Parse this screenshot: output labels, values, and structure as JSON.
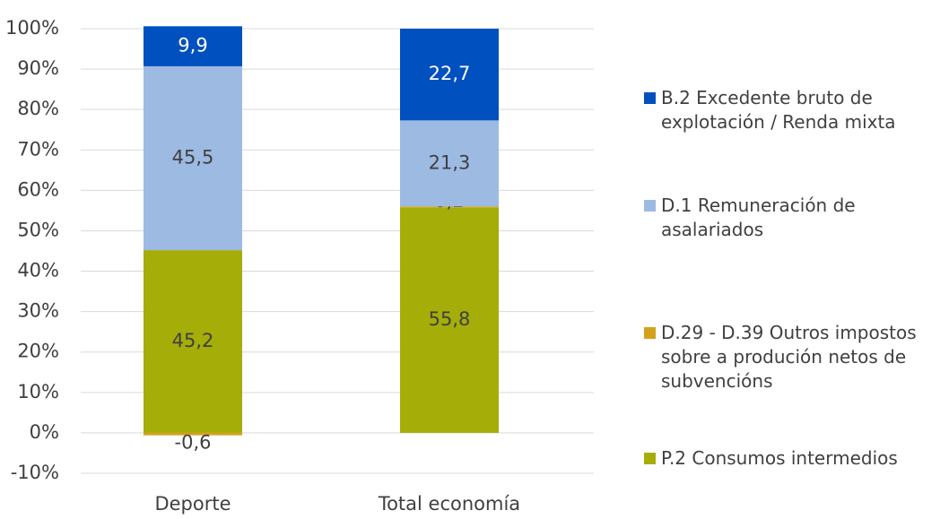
{
  "chart_data": {
    "type": "stacked_bar",
    "categories": [
      "Deporte",
      "Total economía"
    ],
    "series": [
      {
        "name": "P.2 Consumos intermedios",
        "color": "#a5ad08",
        "values": [
          45.2,
          55.8
        ],
        "value_labels": [
          "45,2",
          "55,8"
        ]
      },
      {
        "name": "D.29 - D.39 Outros impostos sobre a produción netos de subvencións",
        "color": "#d4a21a",
        "values": [
          -0.6,
          0.2
        ],
        "value_labels": [
          "-0,6",
          "0,2"
        ]
      },
      {
        "name": "D.1 Remuneración de asalariados",
        "color": "#9dbae3",
        "values": [
          45.5,
          21.3
        ],
        "value_labels": [
          "45,5",
          "21,3"
        ]
      },
      {
        "name": "B.2 Excedente bruto de explotación / Renda mixta",
        "color": "#0050bf",
        "values": [
          9.9,
          22.7
        ],
        "value_labels": [
          "9,9",
          "22,7"
        ]
      }
    ],
    "ylim": [
      -10,
      100
    ],
    "yticks": [
      {
        "value": -10,
        "label": "-10%"
      },
      {
        "value": 0,
        "label": "0%"
      },
      {
        "value": 10,
        "label": "10%"
      },
      {
        "value": 20,
        "label": "20%"
      },
      {
        "value": 30,
        "label": "30%"
      },
      {
        "value": 40,
        "label": "40%"
      },
      {
        "value": 50,
        "label": "50%"
      },
      {
        "value": 60,
        "label": "60%"
      },
      {
        "value": 70,
        "label": "70%"
      },
      {
        "value": 80,
        "label": "80%"
      },
      {
        "value": 90,
        "label": "90%"
      },
      {
        "value": 100,
        "label": "100%"
      }
    ],
    "grid": true,
    "legend": "right"
  }
}
